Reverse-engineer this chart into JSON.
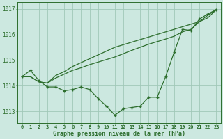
{
  "title": "Graphe pression niveau de la mer (hPa)",
  "xlim": [
    -0.5,
    23.5
  ],
  "ylim": [
    1012.55,
    1017.25
  ],
  "yticks": [
    1013,
    1014,
    1015,
    1016,
    1017
  ],
  "xticks": [
    0,
    1,
    2,
    3,
    4,
    5,
    6,
    7,
    8,
    9,
    10,
    11,
    12,
    13,
    14,
    15,
    16,
    17,
    18,
    19,
    20,
    21,
    22,
    23
  ],
  "bg_color": "#cce8e0",
  "line_color": "#2d6e2d",
  "grid_color": "#a0c8b8",
  "series_main": [
    1014.35,
    1014.6,
    1014.2,
    1013.95,
    1013.95,
    1013.8,
    1013.85,
    1013.95,
    1013.85,
    1013.5,
    1013.2,
    1012.85,
    1013.1,
    1013.15,
    1013.2,
    1013.55,
    1013.55,
    1014.35,
    1015.3,
    1016.2,
    1016.15,
    1016.6,
    1016.8,
    1016.97
  ],
  "series_diag1": [
    1014.35,
    1014.35,
    1014.15,
    1014.1,
    1014.4,
    1014.55,
    1014.75,
    1014.9,
    1015.05,
    1015.2,
    1015.35,
    1015.5,
    1015.6,
    1015.7,
    1015.8,
    1015.9,
    1016.0,
    1016.1,
    1016.2,
    1016.3,
    1016.4,
    1016.5,
    1016.75,
    1016.97
  ],
  "series_diag2": [
    1014.35,
    1014.35,
    1014.15,
    1014.1,
    1014.3,
    1014.45,
    1014.6,
    1014.7,
    1014.82,
    1014.92,
    1015.02,
    1015.12,
    1015.25,
    1015.38,
    1015.5,
    1015.62,
    1015.72,
    1015.82,
    1015.93,
    1016.1,
    1016.2,
    1016.5,
    1016.65,
    1016.97
  ]
}
